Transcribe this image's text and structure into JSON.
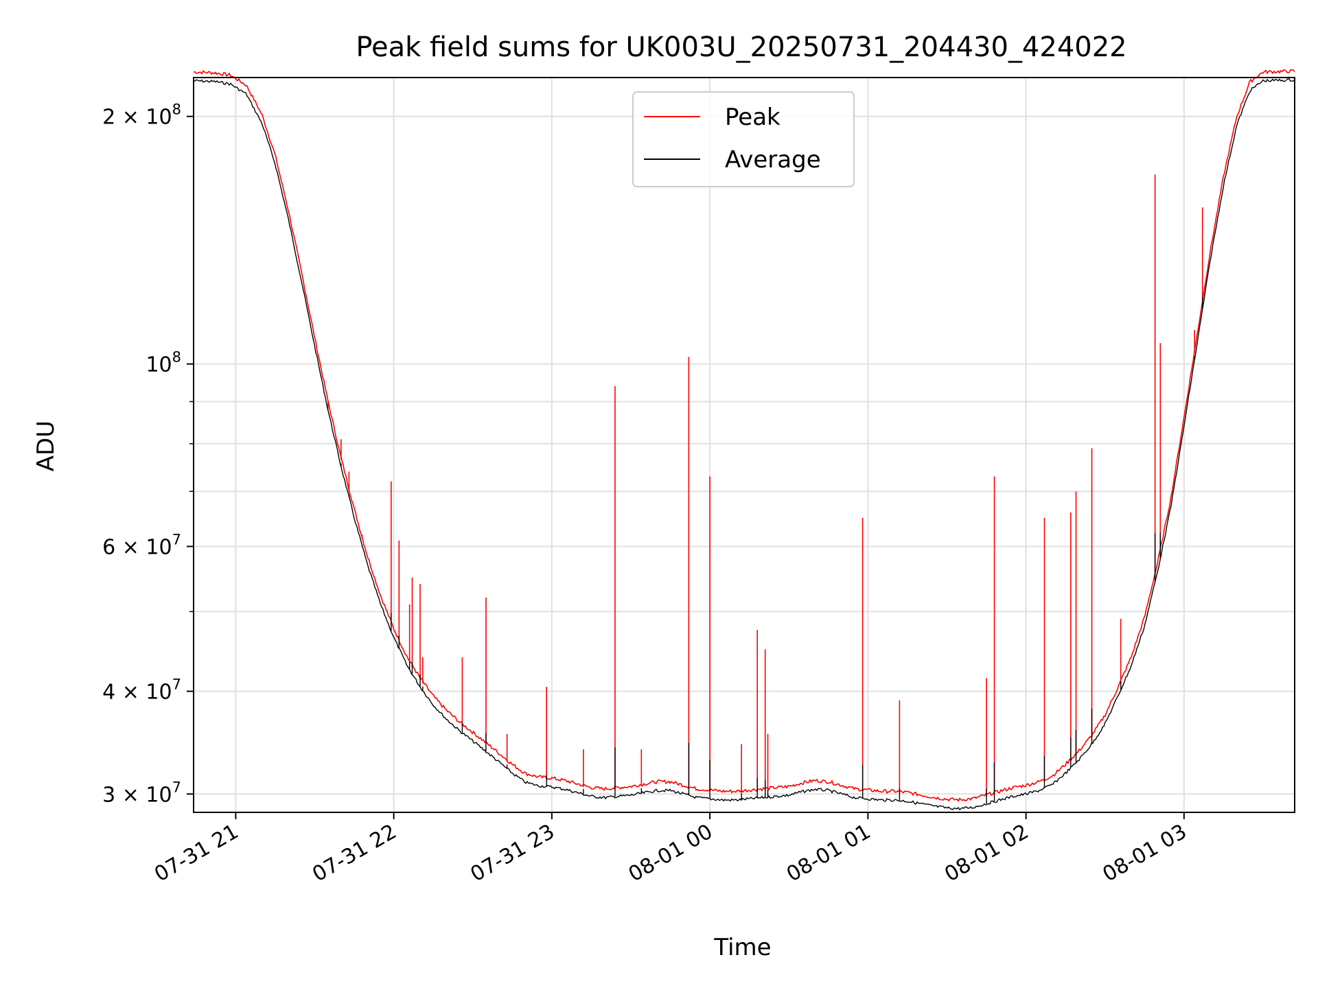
{
  "chart_data": {
    "type": "line",
    "title": "Peak field sums for UK003U_20250731_204430_424022",
    "xlabel": "Time",
    "ylabel": "ADU",
    "scale_y": "log",
    "grid": true,
    "legend_placement": "upper-center",
    "xlim": [
      "2025-07-31 20:44",
      "2025-08-01 03:42"
    ],
    "ylim": [
      28500000,
      223000000
    ],
    "x_ticks": [
      {
        "value": "2025-07-31 21:00",
        "label": "07-31 21"
      },
      {
        "value": "2025-07-31 22:00",
        "label": "07-31 22"
      },
      {
        "value": "2025-07-31 23:00",
        "label": "07-31 23"
      },
      {
        "value": "2025-08-01 00:00",
        "label": "08-01 00"
      },
      {
        "value": "2025-08-01 01:00",
        "label": "08-01 01"
      },
      {
        "value": "2025-08-01 02:00",
        "label": "08-01 02"
      },
      {
        "value": "2025-08-01 03:00",
        "label": "08-01 03"
      }
    ],
    "y_ticks_major": [
      {
        "value": 30000000,
        "base": "3 × 10",
        "exp": "7"
      },
      {
        "value": 40000000,
        "base": "4 × 10",
        "exp": "7"
      },
      {
        "value": 60000000,
        "base": "6 × 10",
        "exp": "7"
      },
      {
        "value": 100000000,
        "base": "10",
        "exp": "8"
      },
      {
        "value": 200000000,
        "base": "2 × 10",
        "exp": "8"
      }
    ],
    "y_ticks_minor": [
      50000000,
      70000000,
      80000000,
      90000000
    ],
    "series": [
      {
        "name": "Average",
        "color": "#000000",
        "points": [
          [
            "2025-07-31 20:44",
            221000000
          ],
          [
            "2025-07-31 20:52",
            220500000
          ],
          [
            "2025-07-31 20:58",
            219000000
          ],
          [
            "2025-07-31 21:04",
            213000000
          ],
          [
            "2025-07-31 21:10",
            196000000
          ],
          [
            "2025-07-31 21:15",
            175000000
          ],
          [
            "2025-07-31 21:20",
            150000000
          ],
          [
            "2025-07-31 21:25",
            126000000
          ],
          [
            "2025-07-31 21:30",
            105000000
          ],
          [
            "2025-07-31 21:35",
            88000000
          ],
          [
            "2025-07-31 21:40",
            75000000
          ],
          [
            "2025-07-31 21:45",
            65000000
          ],
          [
            "2025-07-31 21:50",
            57000000
          ],
          [
            "2025-07-31 21:55",
            51000000
          ],
          [
            "2025-07-31 22:00",
            46500000
          ],
          [
            "2025-07-31 22:05",
            43000000
          ],
          [
            "2025-07-31 22:10",
            40500000
          ],
          [
            "2025-07-31 22:15",
            38500000
          ],
          [
            "2025-07-31 22:20",
            37000000
          ],
          [
            "2025-07-31 22:25",
            35800000
          ],
          [
            "2025-07-31 22:30",
            34800000
          ],
          [
            "2025-07-31 22:35",
            33800000
          ],
          [
            "2025-07-31 22:40",
            32800000
          ],
          [
            "2025-07-31 22:45",
            31800000
          ],
          [
            "2025-07-31 22:50",
            31000000
          ],
          [
            "2025-07-31 22:55",
            30700000
          ],
          [
            "2025-07-31 23:00",
            30600000
          ],
          [
            "2025-07-31 23:05",
            30400000
          ],
          [
            "2025-07-31 23:10",
            30100000
          ],
          [
            "2025-07-31 23:15",
            29800000
          ],
          [
            "2025-07-31 23:20",
            29700000
          ],
          [
            "2025-07-31 23:25",
            29800000
          ],
          [
            "2025-07-31 23:30",
            29900000
          ],
          [
            "2025-07-31 23:35",
            30100000
          ],
          [
            "2025-07-31 23:40",
            30300000
          ],
          [
            "2025-07-31 23:45",
            30300000
          ],
          [
            "2025-07-31 23:50",
            30000000
          ],
          [
            "2025-07-31 23:55",
            29700000
          ],
          [
            "2025-08-01 00:00",
            29600000
          ],
          [
            "2025-08-01 00:05",
            29500000
          ],
          [
            "2025-08-01 00:10",
            29500000
          ],
          [
            "2025-08-01 00:15",
            29600000
          ],
          [
            "2025-08-01 00:20",
            29700000
          ],
          [
            "2025-08-01 00:25",
            29800000
          ],
          [
            "2025-08-01 00:30",
            29900000
          ],
          [
            "2025-08-01 00:35",
            30200000
          ],
          [
            "2025-08-01 00:40",
            30400000
          ],
          [
            "2025-08-01 00:45",
            30300000
          ],
          [
            "2025-08-01 00:50",
            30000000
          ],
          [
            "2025-08-01 00:55",
            29700000
          ],
          [
            "2025-08-01 01:00",
            29600000
          ],
          [
            "2025-08-01 01:05",
            29500000
          ],
          [
            "2025-08-01 01:10",
            29500000
          ],
          [
            "2025-08-01 01:15",
            29400000
          ],
          [
            "2025-08-01 01:20",
            29200000
          ],
          [
            "2025-08-01 01:25",
            29000000
          ],
          [
            "2025-08-01 01:30",
            28850000
          ],
          [
            "2025-08-01 01:35",
            28800000
          ],
          [
            "2025-08-01 01:40",
            28900000
          ],
          [
            "2025-08-01 01:45",
            29200000
          ],
          [
            "2025-08-01 01:50",
            29500000
          ],
          [
            "2025-08-01 01:55",
            29800000
          ],
          [
            "2025-08-01 02:00",
            30000000
          ],
          [
            "2025-08-01 02:05",
            30300000
          ],
          [
            "2025-08-01 02:10",
            30800000
          ],
          [
            "2025-08-01 02:15",
            31800000
          ],
          [
            "2025-08-01 02:20",
            33000000
          ],
          [
            "2025-08-01 02:25",
            34500000
          ],
          [
            "2025-08-01 02:30",
            36500000
          ],
          [
            "2025-08-01 02:35",
            39500000
          ],
          [
            "2025-08-01 02:40",
            43000000
          ],
          [
            "2025-08-01 02:45",
            48000000
          ],
          [
            "2025-08-01 02:50",
            56000000
          ],
          [
            "2025-08-01 02:55",
            67000000
          ],
          [
            "2025-08-01 03:00",
            84000000
          ],
          [
            "2025-08-01 03:05",
            106000000
          ],
          [
            "2025-08-01 03:10",
            134000000
          ],
          [
            "2025-08-01 03:15",
            165000000
          ],
          [
            "2025-08-01 03:20",
            195000000
          ],
          [
            "2025-08-01 03:25",
            215000000
          ],
          [
            "2025-08-01 03:30",
            221000000
          ],
          [
            "2025-08-01 03:42",
            221500000
          ]
        ]
      },
      {
        "name": "Peak",
        "color": "#ff0000",
        "offset_ratio": 1.02,
        "spikes": [
          [
            "2025-07-31 21:35",
            88000000
          ],
          [
            "2025-07-31 21:40",
            81000000
          ],
          [
            "2025-07-31 21:43",
            74000000
          ],
          [
            "2025-07-31 21:48",
            62000000
          ],
          [
            "2025-07-31 21:59",
            72000000
          ],
          [
            "2025-07-31 22:02",
            61000000
          ],
          [
            "2025-07-31 22:06",
            51000000
          ],
          [
            "2025-07-31 22:07",
            55000000
          ],
          [
            "2025-07-31 22:10",
            54000000
          ],
          [
            "2025-07-31 22:11",
            44000000
          ],
          [
            "2025-07-31 22:26",
            44000000
          ],
          [
            "2025-07-31 22:35",
            52000000
          ],
          [
            "2025-07-31 22:43",
            35500000
          ],
          [
            "2025-07-31 22:58",
            40500000
          ],
          [
            "2025-07-31 23:12",
            34000000
          ],
          [
            "2025-07-31 23:24",
            94000000
          ],
          [
            "2025-07-31 23:34",
            34000000
          ],
          [
            "2025-07-31 23:52",
            102000000
          ],
          [
            "2025-08-01 00:00",
            73000000
          ],
          [
            "2025-08-01 00:12",
            34500000
          ],
          [
            "2025-08-01 00:18",
            47500000
          ],
          [
            "2025-08-01 00:21",
            45000000
          ],
          [
            "2025-08-01 00:22",
            35500000
          ],
          [
            "2025-08-01 00:58",
            65000000
          ],
          [
            "2025-08-01 01:12",
            39000000
          ],
          [
            "2025-08-01 01:45",
            41500000
          ],
          [
            "2025-08-01 01:48",
            73000000
          ],
          [
            "2025-08-01 02:07",
            65000000
          ],
          [
            "2025-08-01 02:17",
            66000000
          ],
          [
            "2025-08-01 02:19",
            70000000
          ],
          [
            "2025-08-01 02:25",
            79000000
          ],
          [
            "2025-08-01 02:36",
            49000000
          ],
          [
            "2025-08-01 02:49",
            170000000
          ],
          [
            "2025-08-01 02:51",
            106000000
          ],
          [
            "2025-08-01 03:04",
            110000000
          ],
          [
            "2025-08-01 03:07",
            155000000
          ]
        ]
      }
    ]
  }
}
